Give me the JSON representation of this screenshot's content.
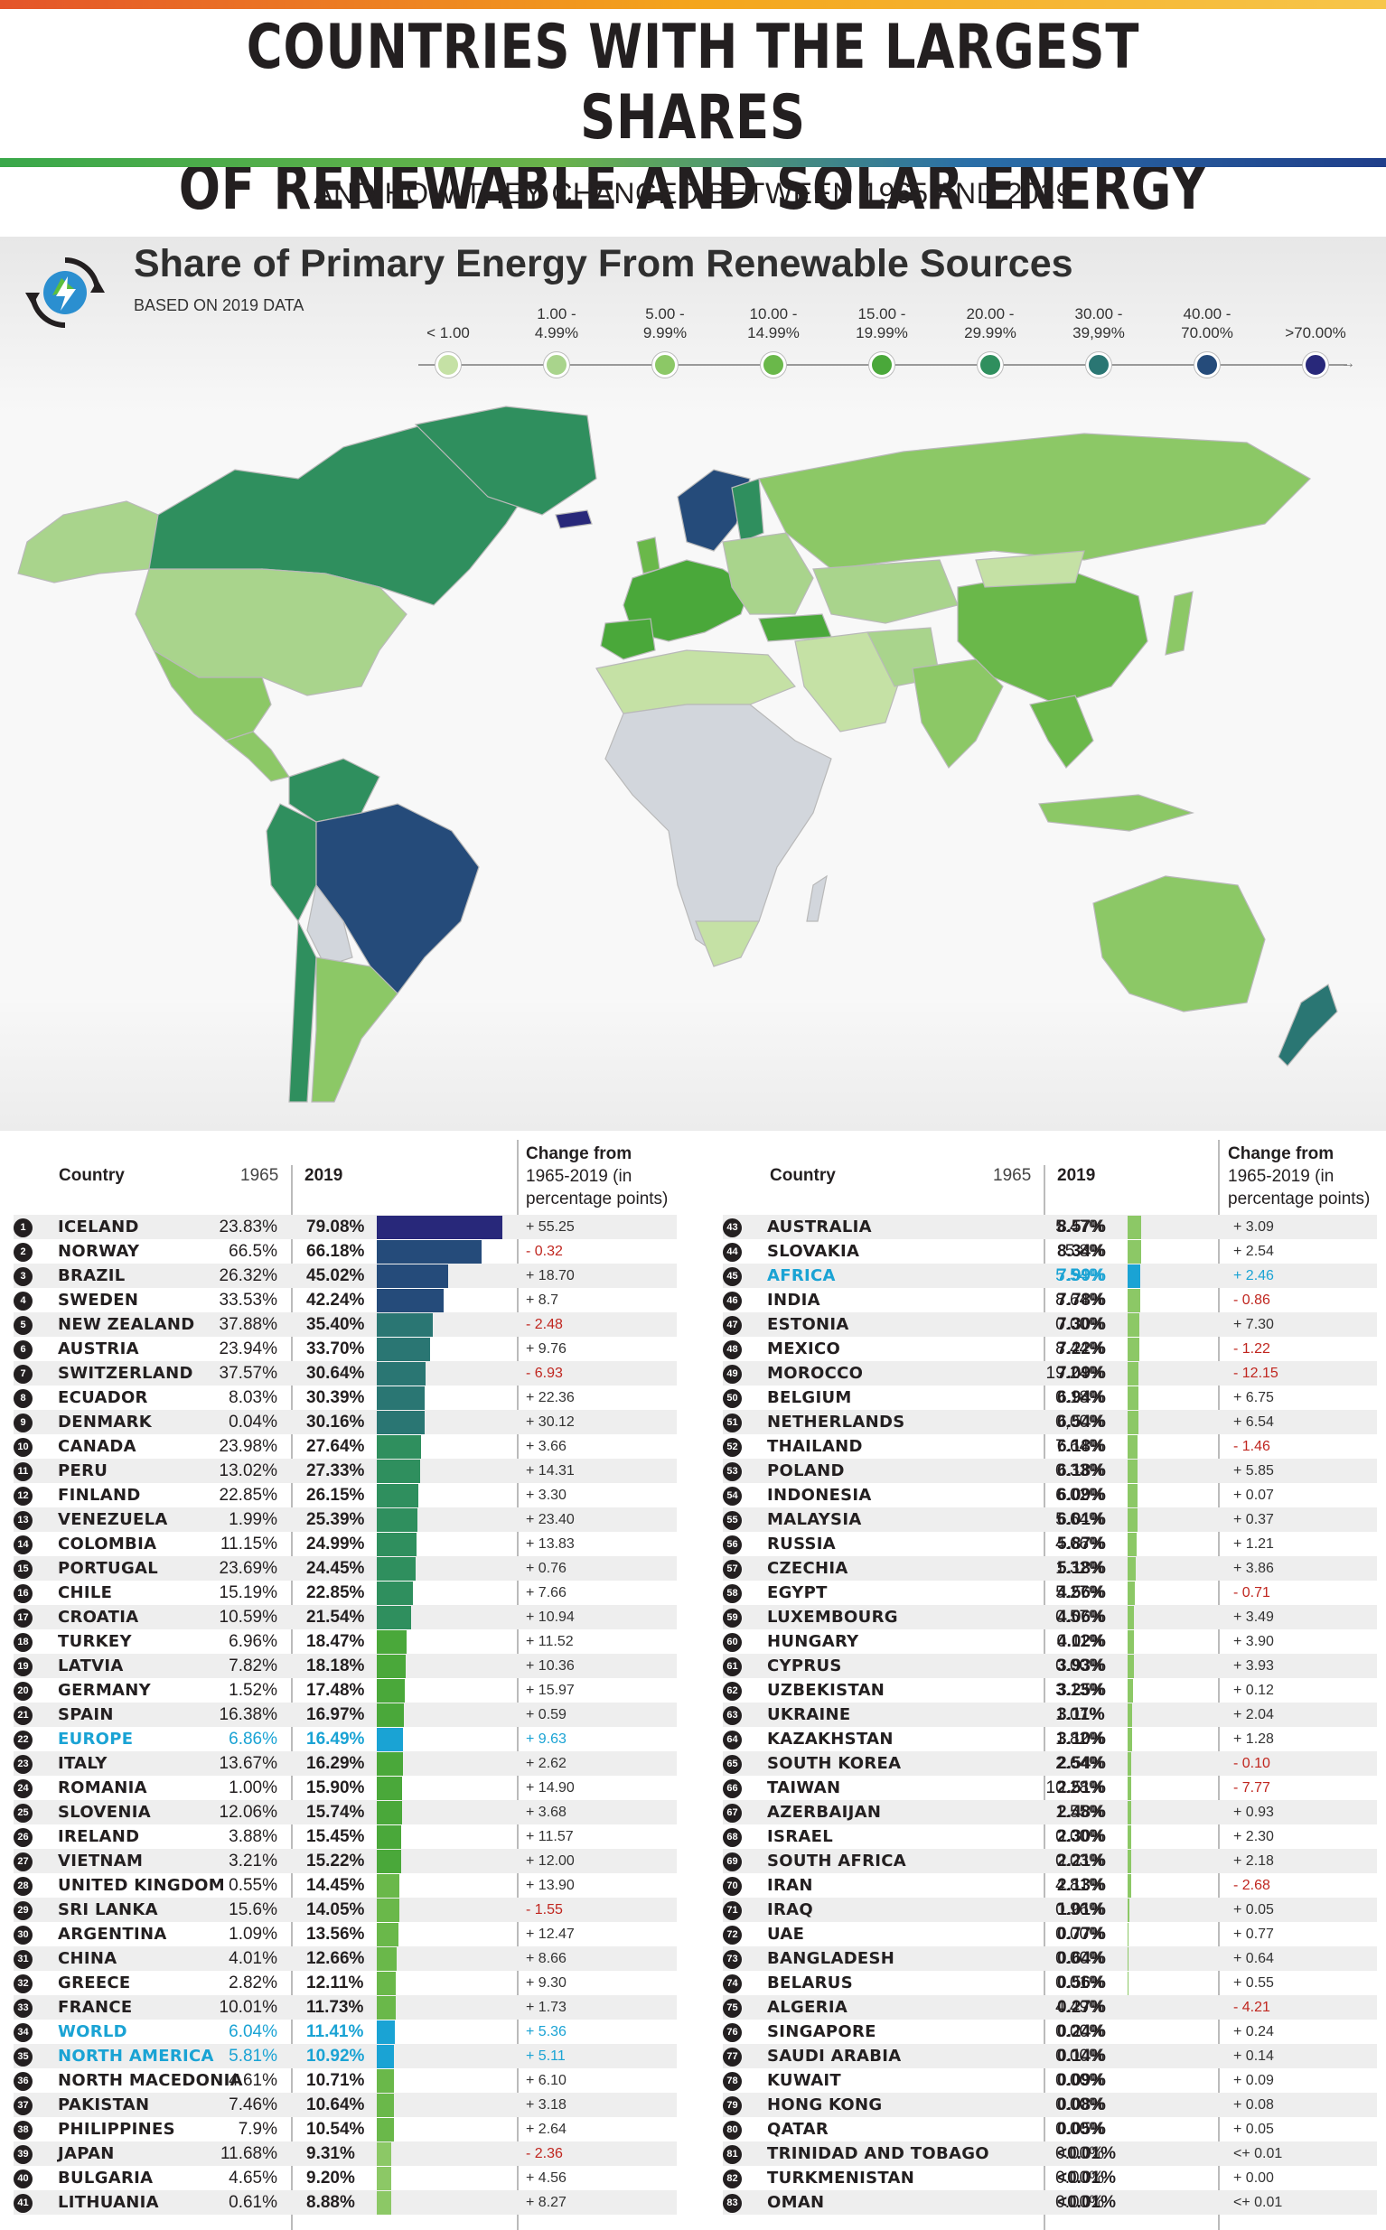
{
  "header": {
    "title_line1": "COUNTRIES WITH THE LARGEST SHARES",
    "title_line2": "OF RENEWABLE AND SOLAR ENERGY",
    "subtitle": "AND HOW THEY CHANGED BETWEEN 1965 AND 2019"
  },
  "map": {
    "title": "Share of Primary Energy From Renewable Sources",
    "subtitle": "BASED ON 2019 DATA",
    "legend": [
      {
        "label": "< 1.00",
        "color": "#c5e1a5"
      },
      {
        "label": "1.00 - 4.99%",
        "color": "#a9d48c"
      },
      {
        "label": "5.00 - 9.99%",
        "color": "#8cc866"
      },
      {
        "label": "10.00 - 14.99%",
        "color": "#6ab84a"
      },
      {
        "label": "15.00 - 19.99%",
        "color": "#4aa83a"
      },
      {
        "label": "20.00 - 29.99%",
        "color": "#2f8f5e"
      },
      {
        "label": "30.00 - 39,99%",
        "color": "#2a7673"
      },
      {
        "label": "40.00 - 70.00%",
        "color": "#254b7a"
      },
      {
        "label": ">70.00%",
        "color": "#28287a"
      }
    ],
    "nodata_color": "#d2d6dc"
  },
  "table": {
    "col_country": "Country",
    "col_1965": "1965",
    "col_2019": "2019",
    "col_change": [
      "Change from",
      "1965-2019 (in",
      "percentage points)"
    ]
  },
  "chart_data": {
    "type": "table",
    "title": "Share of Primary Energy From Renewable Sources",
    "columns": [
      "Rank",
      "Country",
      "1965",
      "2019",
      "Change from 1965-2019 (in percentage points)"
    ],
    "rows_left": [
      {
        "rank": "1",
        "country": "ICELAND",
        "v1965": "23.83%",
        "v2019": "79.08%",
        "value": 79.08,
        "change": "+ 55.25"
      },
      {
        "rank": "2",
        "country": "NORWAY",
        "v1965": "66.5%",
        "v2019": "66.18%",
        "value": 66.18,
        "change": "- 0.32"
      },
      {
        "rank": "3",
        "country": "BRAZIL",
        "v1965": "26.32%",
        "v2019": "45.02%",
        "value": 45.02,
        "change": "+ 18.70"
      },
      {
        "rank": "4",
        "country": "SWEDEN",
        "v1965": "33.53%",
        "v2019": "42.24%",
        "value": 42.24,
        "change": "+ 8.7"
      },
      {
        "rank": "5",
        "country": "NEW ZEALAND",
        "v1965": "37.88%",
        "v2019": "35.40%",
        "value": 35.4,
        "change": "- 2.48"
      },
      {
        "rank": "6",
        "country": "AUSTRIA",
        "v1965": "23.94%",
        "v2019": "33.70%",
        "value": 33.7,
        "change": "+ 9.76"
      },
      {
        "rank": "7",
        "country": "SWITZERLAND",
        "v1965": "37.57%",
        "v2019": "30.64%",
        "value": 30.64,
        "change": "- 6.93"
      },
      {
        "rank": "8",
        "country": "ECUADOR",
        "v1965": "8.03%",
        "v2019": "30.39%",
        "value": 30.39,
        "change": "+ 22.36"
      },
      {
        "rank": "9",
        "country": "DENMARK",
        "v1965": "0.04%",
        "v2019": "30.16%",
        "value": 30.16,
        "change": "+ 30.12"
      },
      {
        "rank": "10",
        "country": "CANADA",
        "v1965": "23.98%",
        "v2019": "27.64%",
        "value": 27.64,
        "change": "+ 3.66"
      },
      {
        "rank": "11",
        "country": "PERU",
        "v1965": "13.02%",
        "v2019": "27.33%",
        "value": 27.33,
        "change": "+ 14.31"
      },
      {
        "rank": "12",
        "country": "FINLAND",
        "v1965": "22.85%",
        "v2019": "26.15%",
        "value": 26.15,
        "change": "+ 3.30"
      },
      {
        "rank": "13",
        "country": "VENEZUELA",
        "v1965": "1.99%",
        "v2019": "25.39%",
        "value": 25.39,
        "change": "+ 23.40"
      },
      {
        "rank": "14",
        "country": "COLOMBIA",
        "v1965": "11.15%",
        "v2019": "24.99%",
        "value": 24.99,
        "change": "+ 13.83"
      },
      {
        "rank": "15",
        "country": "PORTUGAL",
        "v1965": "23.69%",
        "v2019": "24.45%",
        "value": 24.45,
        "change": "+ 0.76"
      },
      {
        "rank": "16",
        "country": "CHILE",
        "v1965": "15.19%",
        "v2019": "22.85%",
        "value": 22.85,
        "change": "+ 7.66"
      },
      {
        "rank": "17",
        "country": "CROATIA",
        "v1965": "10.59%",
        "v2019": "21.54%",
        "value": 21.54,
        "change": "+ 10.94"
      },
      {
        "rank": "18",
        "country": "TURKEY",
        "v1965": "6.96%",
        "v2019": "18.47%",
        "value": 18.47,
        "change": "+ 11.52"
      },
      {
        "rank": "19",
        "country": "LATVIA",
        "v1965": "7.82%",
        "v2019": "18.18%",
        "value": 18.18,
        "change": "+ 10.36"
      },
      {
        "rank": "20",
        "country": "GERMANY",
        "v1965": "1.52%",
        "v2019": "17.48%",
        "value": 17.48,
        "change": "+ 15.97"
      },
      {
        "rank": "21",
        "country": "SPAIN",
        "v1965": "16.38%",
        "v2019": "16.97%",
        "value": 16.97,
        "change": "+ 0.59"
      },
      {
        "rank": "22",
        "country": "EUROPE",
        "v1965": "6.86%",
        "v2019": "16.49%",
        "value": 16.49,
        "change": "+ 9.63",
        "region": true
      },
      {
        "rank": "23",
        "country": "ITALY",
        "v1965": "13.67%",
        "v2019": "16.29%",
        "value": 16.29,
        "change": "+ 2.62"
      },
      {
        "rank": "24",
        "country": "ROMANIA",
        "v1965": "1.00%",
        "v2019": "15.90%",
        "value": 15.9,
        "change": "+ 14.90"
      },
      {
        "rank": "25",
        "country": "SLOVENIA",
        "v1965": "12.06%",
        "v2019": "15.74%",
        "value": 15.74,
        "change": "+ 3.68"
      },
      {
        "rank": "26",
        "country": "IRELAND",
        "v1965": "3.88%",
        "v2019": "15.45%",
        "value": 15.45,
        "change": "+ 11.57"
      },
      {
        "rank": "27",
        "country": "VIETNAM",
        "v1965": "3.21%",
        "v2019": "15.22%",
        "value": 15.22,
        "change": "+ 12.00"
      },
      {
        "rank": "28",
        "country": "UNITED KINGDOM",
        "v1965": "0.55%",
        "v2019": "14.45%",
        "value": 14.45,
        "change": "+ 13.90"
      },
      {
        "rank": "29",
        "country": "SRI LANKA",
        "v1965": "15.6%",
        "v2019": "14.05%",
        "value": 14.05,
        "change": "- 1.55"
      },
      {
        "rank": "30",
        "country": "ARGENTINA",
        "v1965": "1.09%",
        "v2019": "13.56%",
        "value": 13.56,
        "change": "+ 12.47"
      },
      {
        "rank": "31",
        "country": "CHINA",
        "v1965": "4.01%",
        "v2019": "12.66%",
        "value": 12.66,
        "change": "+ 8.66"
      },
      {
        "rank": "32",
        "country": "GREECE",
        "v1965": "2.82%",
        "v2019": "12.11%",
        "value": 12.11,
        "change": "+ 9.30"
      },
      {
        "rank": "33",
        "country": "FRANCE",
        "v1965": "10.01%",
        "v2019": "11.73%",
        "value": 11.73,
        "change": "+ 1.73"
      },
      {
        "rank": "34",
        "country": "WORLD",
        "v1965": "6.04%",
        "v2019": "11.41%",
        "value": 11.41,
        "change": "+ 5.36",
        "region": true
      },
      {
        "rank": "35",
        "country": "NORTH AMERICA",
        "v1965": "5.81%",
        "v2019": "10.92%",
        "value": 10.92,
        "change": "+ 5.11",
        "region": true
      },
      {
        "rank": "36",
        "country": "NORTH MACEDONIA",
        "v1965": "4.61%",
        "v2019": "10.71%",
        "value": 10.71,
        "change": "+ 6.10"
      },
      {
        "rank": "37",
        "country": "PAKISTAN",
        "v1965": "7.46%",
        "v2019": "10.64%",
        "value": 10.64,
        "change": "+ 3.18"
      },
      {
        "rank": "38",
        "country": "PHILIPPINES",
        "v1965": "7.9%",
        "v2019": "10.54%",
        "value": 10.54,
        "change": "+ 2.64"
      },
      {
        "rank": "39",
        "country": "JAPAN",
        "v1965": "11.68%",
        "v2019": "9.31%",
        "value": 9.31,
        "change": "- 2.36"
      },
      {
        "rank": "40",
        "country": "BULGARIA",
        "v1965": "4.65%",
        "v2019": "9.20%",
        "value": 9.2,
        "change": "+ 4.56"
      },
      {
        "rank": "41",
        "country": "LITHUANIA",
        "v1965": "0.61%",
        "v2019": "8.88%",
        "value": 8.88,
        "change": "+ 8.27"
      }
    ],
    "rows_right": [
      {
        "rank": "43",
        "country": "AUSTRALIA",
        "v1965": "5.47%",
        "v2019": "8.57%",
        "value": 8.57,
        "change": "+ 3.09"
      },
      {
        "rank": "44",
        "country": "SLOVAKIA",
        "v1965": "5.8%",
        "v2019": "8.34%",
        "value": 8.34,
        "change": "+ 2.54"
      },
      {
        "rank": "45",
        "country": "AFRICA",
        "v1965": "5.54%",
        "v2019": "7.99%",
        "value": 7.99,
        "change": "+ 2.46",
        "region": true
      },
      {
        "rank": "46",
        "country": "INDIA",
        "v1965": "8.64%",
        "v2019": "7.78%",
        "value": 7.78,
        "change": "- 0.86"
      },
      {
        "rank": "47",
        "country": "ESTONIA",
        "v1965": "0.00%",
        "v2019": "7.30%",
        "value": 7.3,
        "change": "+ 7.30"
      },
      {
        "rank": "48",
        "country": "MEXICO",
        "v1965": "8.44%",
        "v2019": "7.22%",
        "value": 7.22,
        "change": "- 1.22"
      },
      {
        "rank": "49",
        "country": "MOROCCO",
        "v1965": "19.24%",
        "v2019": "7.09%",
        "value": 7.09,
        "change": "- 12.15"
      },
      {
        "rank": "50",
        "country": "BELGIUM",
        "v1965": "0.18%",
        "v2019": "6.94%",
        "value": 6.94,
        "change": "+ 6.75"
      },
      {
        "rank": "51",
        "country": "NETHERLANDS",
        "v1965": "0,00%",
        "v2019": "6.54%",
        "value": 6.54,
        "change": "+ 6.54"
      },
      {
        "rank": "52",
        "country": "THAILAND",
        "v1965": "7.64%",
        "v2019": "6.18%",
        "value": 6.18,
        "change": "- 1.46"
      },
      {
        "rank": "53",
        "country": "POLAND",
        "v1965": "0.33%",
        "v2019": "6.18%",
        "value": 6.18,
        "change": "+ 5.85"
      },
      {
        "rank": "54",
        "country": "INDONESIA",
        "v1965": "6.02%",
        "v2019": "6.09%",
        "value": 6.09,
        "change": "+ 0.07"
      },
      {
        "rank": "55",
        "country": "MALAYSIA",
        "v1965": "5.64%",
        "v2019": "6.01%",
        "value": 6.01,
        "change": "+ 0.37"
      },
      {
        "rank": "56",
        "country": "RUSSIA",
        "v1965": "4.66%",
        "v2019": "5.87%",
        "value": 5.87,
        "change": "+ 1.21"
      },
      {
        "rank": "57",
        "country": "CZECHIA",
        "v1965": "1.32%",
        "v2019": "5.18%",
        "value": 5.18,
        "change": "+ 3.86"
      },
      {
        "rank": "58",
        "country": "EGYPT",
        "v1965": "5.27%",
        "v2019": "4.56%",
        "value": 4.56,
        "change": "- 0.71"
      },
      {
        "rank": "59",
        "country": "LUXEMBOURG",
        "v1965": "0.57%",
        "v2019": "4.06%",
        "value": 4.06,
        "change": "+ 3.49"
      },
      {
        "rank": "60",
        "country": "HUNGARY",
        "v1965": "0.11%",
        "v2019": "4.02%",
        "value": 4.02,
        "change": "+ 3.90"
      },
      {
        "rank": "61",
        "country": "CYPRUS",
        "v1965": "0.00%",
        "v2019": "3.93%",
        "value": 3.93,
        "change": "+ 3.93"
      },
      {
        "rank": "62",
        "country": "UZBEKISTAN",
        "v1965": "3.13%",
        "v2019": "3.25%",
        "value": 3.25,
        "change": "+ 0.12"
      },
      {
        "rank": "63",
        "country": "UKRAINE",
        "v1965": "1.07%",
        "v2019": "3.11%",
        "value": 3.11,
        "change": "+ 2.04"
      },
      {
        "rank": "64",
        "country": "KAZAKHSTAN",
        "v1965": "1.82%",
        "v2019": "3.10%",
        "value": 3.1,
        "change": "+ 1.28"
      },
      {
        "rank": "65",
        "country": "SOUTH KOREA",
        "v1965": "2.64%",
        "v2019": "2.54%",
        "value": 2.54,
        "change": "- 0.10"
      },
      {
        "rank": "66",
        "country": "TAIWAN",
        "v1965": "10.28%",
        "v2019": "2.51%",
        "value": 2.51,
        "change": "- 7.77"
      },
      {
        "rank": "67",
        "country": "AZERBAIJAN",
        "v1965": "1.55%",
        "v2019": "2.48%",
        "value": 2.48,
        "change": "+ 0.93"
      },
      {
        "rank": "68",
        "country": "ISRAEL",
        "v1965": "0.00%",
        "v2019": "2.30%",
        "value": 2.3,
        "change": "+ 2.30"
      },
      {
        "rank": "69",
        "country": "SOUTH AFRICA",
        "v1965": "0.03%",
        "v2019": "2.21%",
        "value": 2.21,
        "change": "+ 2.18"
      },
      {
        "rank": "70",
        "country": "IRAN",
        "v1965": "4.81%",
        "v2019": "2.13%",
        "value": 2.13,
        "change": "- 2.68"
      },
      {
        "rank": "71",
        "country": "IRAQ",
        "v1965": "0.96%",
        "v2019": "1.01%",
        "value": 1.01,
        "change": "+ 0.05"
      },
      {
        "rank": "72",
        "country": "UAE",
        "v1965": "0.00%",
        "v2019": "0.77%",
        "value": 0.77,
        "change": "+ 0.77"
      },
      {
        "rank": "73",
        "country": "BANGLADESH",
        "v1965": "0.00%",
        "v2019": "0.64%",
        "value": 0.64,
        "change": "+ 0.64"
      },
      {
        "rank": "74",
        "country": "BELARUS",
        "v1965": "0.01%",
        "v2019": "0.56%",
        "value": 0.56,
        "change": "+ 0.55"
      },
      {
        "rank": "75",
        "country": "ALGERIA",
        "v1965": "4.49%",
        "v2019": "0.27%",
        "value": 0.27,
        "change": "- 4.21"
      },
      {
        "rank": "76",
        "country": "SINGAPORE",
        "v1965": "0.00%",
        "v2019": "0.24%",
        "value": 0.24,
        "change": "+ 0.24"
      },
      {
        "rank": "77",
        "country": "SAUDI ARABIA",
        "v1965": "0.00%",
        "v2019": "0.14%",
        "value": 0.14,
        "change": "+ 0.14"
      },
      {
        "rank": "78",
        "country": "KUWAIT",
        "v1965": "0.00%",
        "v2019": "0.09%",
        "value": 0.09,
        "change": "+ 0.09"
      },
      {
        "rank": "79",
        "country": "HONG KONG",
        "v1965": "0.00%",
        "v2019": "0.08%",
        "value": 0.08,
        "change": "+ 0.08"
      },
      {
        "rank": "80",
        "country": "QATAR",
        "v1965": "0.00%",
        "v2019": "0.05%",
        "value": 0.05,
        "change": "+ 0.05"
      },
      {
        "rank": "81",
        "country": "TRINIDAD AND TOBAGO",
        "v1965": "0.00%",
        "v2019": "<0.01%",
        "value": 0.005,
        "change": "<+ 0.01"
      },
      {
        "rank": "82",
        "country": "TURKMENISTAN",
        "v1965": "0.00%",
        "v2019": "<0.01%",
        "value": 0.005,
        "change": "+ 0.00"
      },
      {
        "rank": "83",
        "country": "OMAN",
        "v1965": "0.00%",
        "v2019": "<0.01%",
        "value": 0.005,
        "change": "<+ 0.01"
      }
    ],
    "bar_colors": {
      "gt70": "#28287a",
      "40to70": "#254b7a",
      "30to40": "#2a7673",
      "20to30": "#2f8f5e",
      "15to20": "#4aa83a",
      "10to15": "#6ab84a",
      "5to10": "#8cc866",
      "region": "#1aa3d4"
    }
  }
}
